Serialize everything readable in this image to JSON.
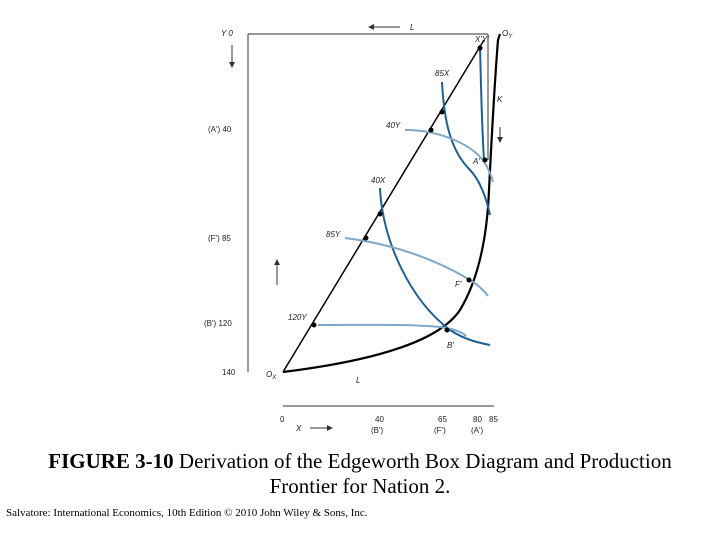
{
  "figure": {
    "top_axis": {
      "label": "L",
      "origin_y": "Y 0",
      "origin_oy": "O",
      "origin_oy_sub": "Y"
    },
    "right_axis": {
      "label": "K"
    },
    "left_axis": {
      "ticks": [
        {
          "prefix": "(A')",
          "value": "40"
        },
        {
          "prefix": "(F')",
          "value": "85"
        },
        {
          "prefix": "(B')",
          "value": "120"
        },
        {
          "prefix": "",
          "value": "140"
        }
      ]
    },
    "bottom_left": {
      "origin_ox": "O",
      "origin_ox_sub": "X",
      "k_label": "K",
      "l_label": "L"
    },
    "bottom_axis": {
      "label": "X",
      "ticks": [
        {
          "value": "0",
          "sub": ""
        },
        {
          "value": "40",
          "sub": "(B')"
        },
        {
          "value": "65",
          "sub": "(F')"
        },
        {
          "value": "80",
          "sub": "(A')"
        },
        {
          "value": "85",
          "sub": ""
        }
      ]
    },
    "isoquant_labels": {
      "x85": "85X",
      "x40": "40X",
      "xy": "X'Y'",
      "y40": "40Y",
      "y85": "85Y",
      "y120": "120Y"
    },
    "points": {
      "a": "A'",
      "f": "F'",
      "b": "B'"
    },
    "colors": {
      "curve": "#1f5f96",
      "curve_light": "#7fa8c8",
      "line": "#000000"
    }
  },
  "caption": {
    "bold": "FIGURE 3-10",
    "text": " Derivation of the Edgeworth Box Diagram and Production Frontier for Nation 2."
  },
  "credit": "Salvatore: International Economics, 10th Edition © 2010 John Wiley & Sons, Inc."
}
